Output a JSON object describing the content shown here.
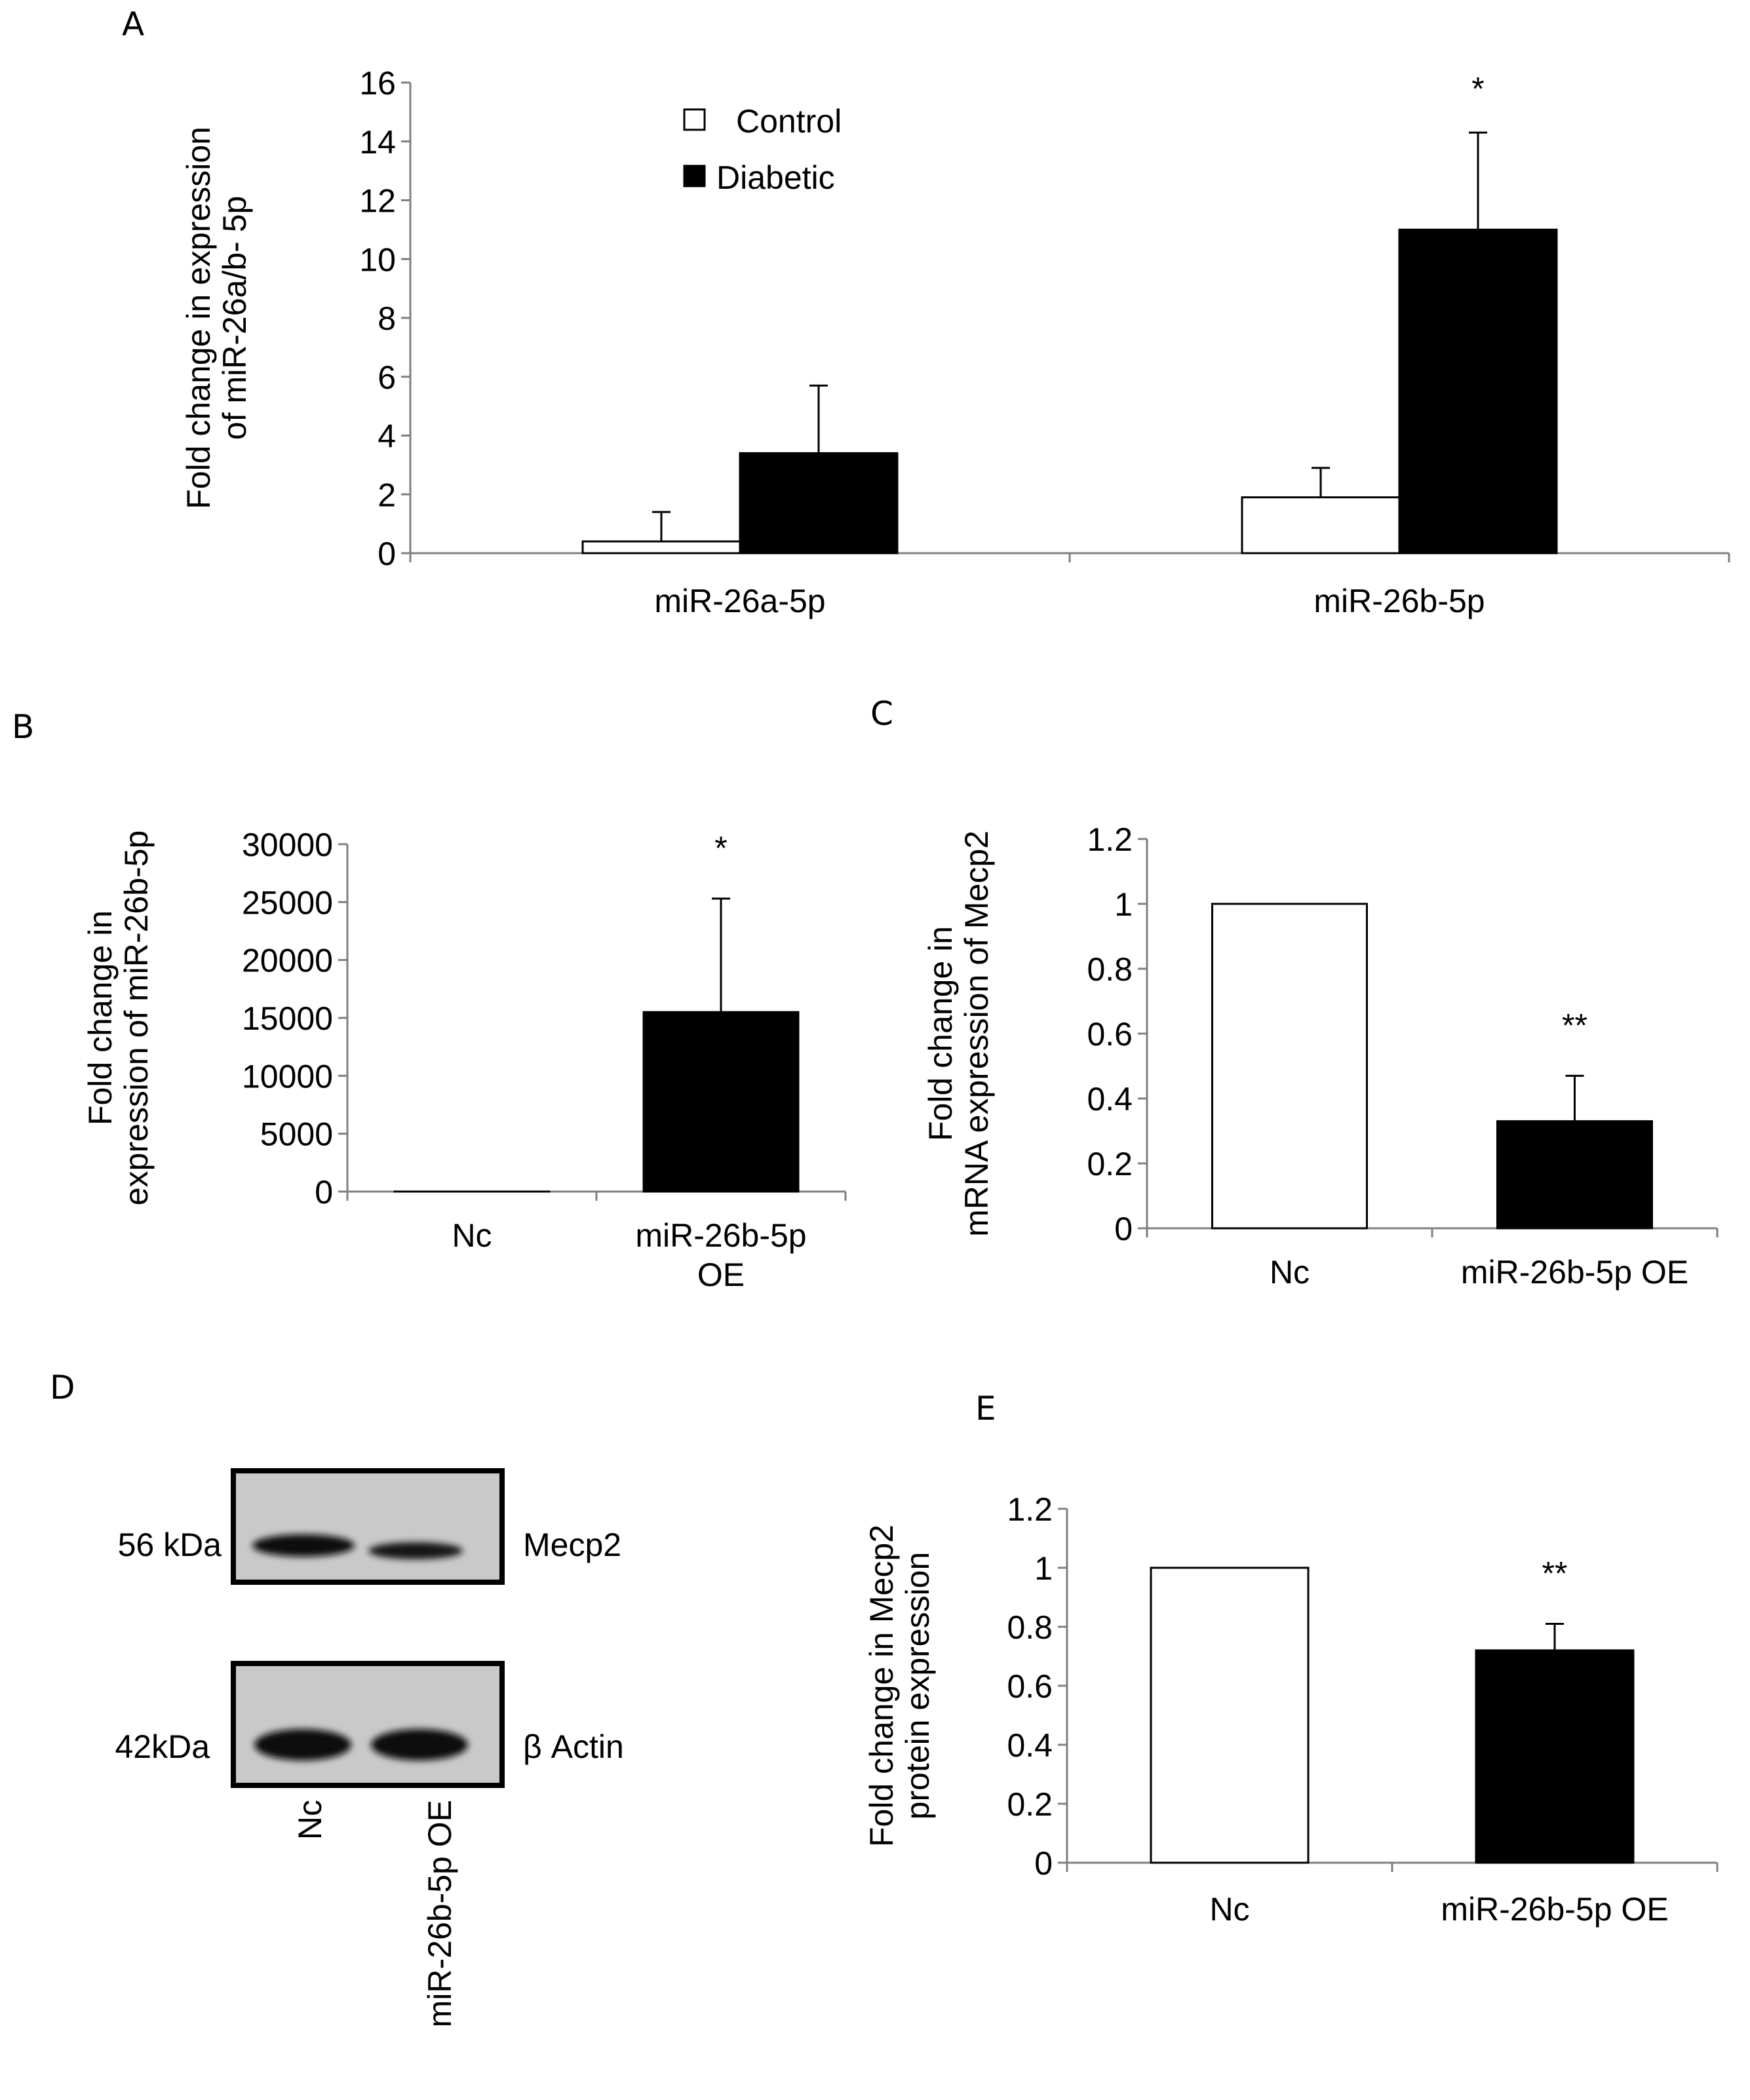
{
  "panel_letters": {
    "a": "A",
    "b": "B",
    "c": "C",
    "d": "D",
    "e": "E"
  },
  "chart_data": [
    {
      "id": "A",
      "type": "bar",
      "title": "",
      "xlabel": "",
      "ylabel_lines": [
        "Fold change in expression",
        "of miR-26a/b- 5p"
      ],
      "ylim": [
        0,
        16
      ],
      "yticks": [
        0,
        2,
        4,
        6,
        8,
        10,
        12,
        14,
        16
      ],
      "ytick_labels": [
        "0",
        "2",
        "4",
        "6",
        "8",
        "10",
        "12",
        "14",
        "16"
      ],
      "categories": [
        "miR-26a-5p",
        "miR-26b-5p"
      ],
      "series": [
        {
          "name": "Control",
          "color": "#ffffff",
          "values": [
            0.4,
            1.9
          ],
          "errors": [
            1.0,
            1.0
          ]
        },
        {
          "name": "Diabetic",
          "color": "#000000",
          "values": [
            3.4,
            11.0
          ],
          "errors": [
            2.3,
            3.3
          ]
        }
      ],
      "annotations": [
        {
          "category": 1,
          "series": 1,
          "text": "*"
        }
      ],
      "legend": {
        "position": "top-center",
        "entries": [
          "Control",
          "Diabetic"
        ]
      }
    },
    {
      "id": "B",
      "type": "bar",
      "ylabel_lines": [
        "Fold change in",
        "expression of miR-26b-5p"
      ],
      "ylim": [
        0,
        30000
      ],
      "yticks": [
        0,
        5000,
        10000,
        15000,
        20000,
        25000,
        30000
      ],
      "ytick_labels": [
        "0",
        "5000",
        "10000",
        "15000",
        "20000",
        "25000",
        "30000"
      ],
      "categories": [
        "Nc",
        "miR-26b-5p OE"
      ],
      "category_lines": [
        [
          "Nc"
        ],
        [
          "miR-26b-5p",
          "OE"
        ]
      ],
      "values": [
        1,
        15500
      ],
      "errors": [
        0,
        9800
      ],
      "colors": [
        "#ffffff",
        "#000000"
      ],
      "annotations": [
        {
          "category": 1,
          "text": "*"
        }
      ]
    },
    {
      "id": "C",
      "type": "bar",
      "ylabel_lines": [
        "Fold change in",
        "mRNA expression of Mecp2"
      ],
      "ylim": [
        0,
        1.2
      ],
      "yticks": [
        0,
        0.2,
        0.4,
        0.6,
        0.8,
        1,
        1.2
      ],
      "ytick_labels": [
        "0",
        "0.2",
        "0.4",
        "0.6",
        "0.8",
        "1",
        "1.2"
      ],
      "categories": [
        "Nc",
        "miR-26b-5p OE"
      ],
      "category_lines": [
        [
          "Nc"
        ],
        [
          "miR-26b-5p OE"
        ]
      ],
      "values": [
        1.0,
        0.33
      ],
      "errors": [
        0,
        0.14
      ],
      "colors": [
        "#ffffff",
        "#000000"
      ],
      "annotations": [
        {
          "category": 1,
          "text": "**"
        }
      ]
    },
    {
      "id": "E",
      "type": "bar",
      "ylabel_lines": [
        "Fold change in Mecp2",
        "protein expression"
      ],
      "ylim": [
        0,
        1.2
      ],
      "yticks": [
        0,
        0.2,
        0.4,
        0.6,
        0.8,
        1,
        1.2
      ],
      "ytick_labels": [
        "0",
        "0.2",
        "0.4",
        "0.6",
        "0.8",
        "1",
        "1.2"
      ],
      "categories": [
        "Nc",
        "miR-26b-5p OE"
      ],
      "category_lines": [
        [
          "Nc"
        ],
        [
          "miR-26b-5p OE"
        ]
      ],
      "values": [
        1.0,
        0.72
      ],
      "errors": [
        0,
        0.09
      ],
      "colors": [
        "#ffffff",
        "#000000"
      ],
      "annotations": [
        {
          "category": 1,
          "text": "**"
        }
      ]
    }
  ],
  "western_blot": {
    "rows": [
      {
        "weight": "56 kDa",
        "protein": "Mecp2"
      },
      {
        "weight": "42kDa",
        "protein": "β Actin"
      }
    ],
    "lanes": [
      "Nc",
      "miR-26b-5p OE"
    ]
  }
}
